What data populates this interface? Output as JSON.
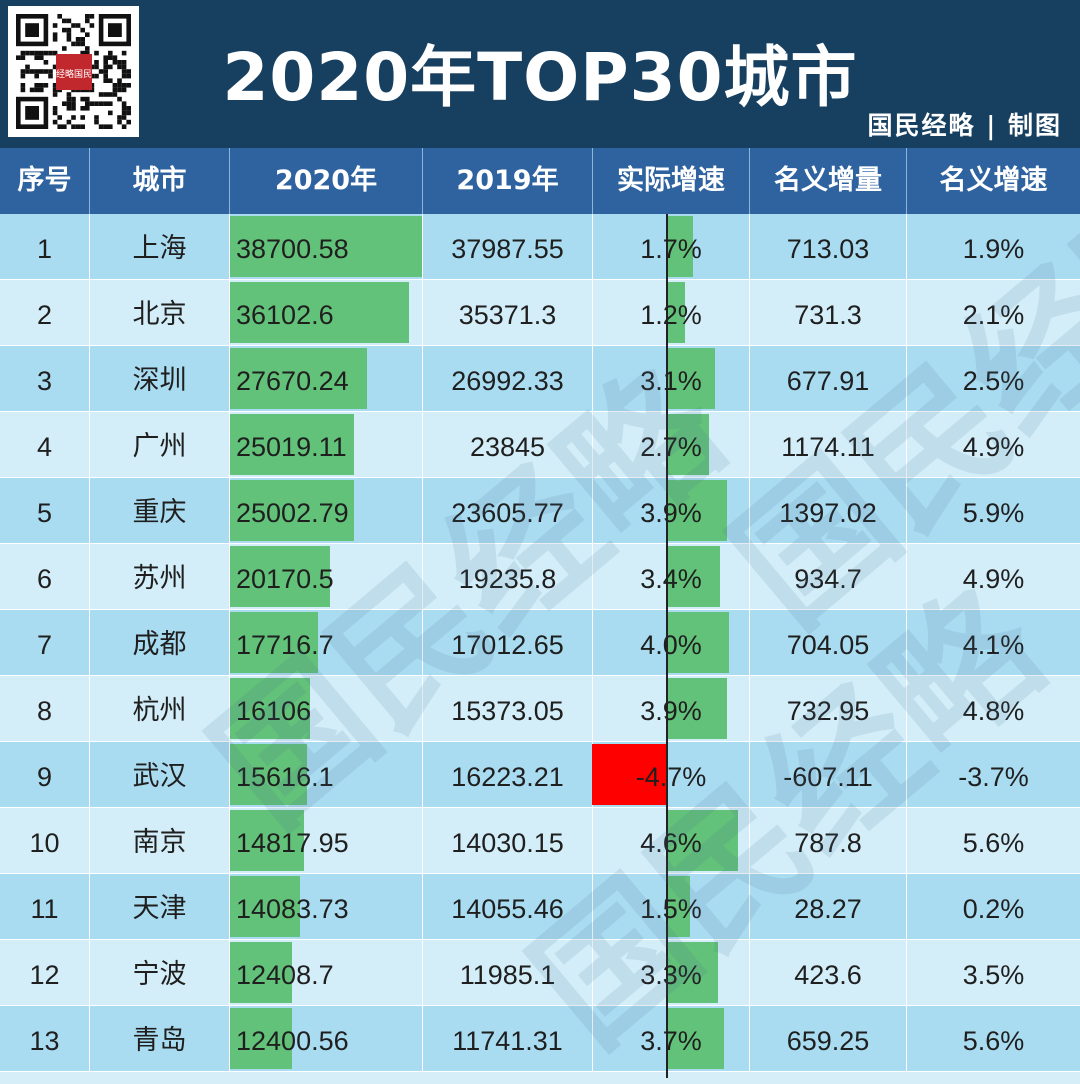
{
  "header": {
    "title": "2020年TOP30城市",
    "credit": "国民经略 | 制图",
    "qr_badge": "经略国民"
  },
  "columns": [
    "序号",
    "城市",
    "2020年",
    "2019年",
    "实际增速",
    "名义增量",
    "名义增速"
  ],
  "watermark": "国民经略",
  "colors": {
    "header_bg": "#173f5f",
    "column_header_bg": "#2f63a0",
    "row_odd": "#a9dcf1",
    "row_even": "#d3eef9",
    "bar_positive": "#63c27a",
    "bar_negative": "#ff0000"
  },
  "chart_data": {
    "type": "table",
    "title": "2020年TOP30城市",
    "gdp_bar_max": 38700.58,
    "growth_bar_max": 4.7,
    "rows": [
      {
        "rank": "1",
        "city": "上海",
        "gdp2020": "38700.58",
        "gdp2019": "37987.55",
        "real_growth": "1.7%",
        "nominal_increase": "713.03",
        "nominal_growth": "1.9%",
        "gdp_value": 38700.58,
        "growth_value": 1.7
      },
      {
        "rank": "2",
        "city": "北京",
        "gdp2020": "36102.6",
        "gdp2019": "35371.3",
        "real_growth": "1.2%",
        "nominal_increase": "731.3",
        "nominal_growth": "2.1%",
        "gdp_value": 36102.6,
        "growth_value": 1.2
      },
      {
        "rank": "3",
        "city": "深圳",
        "gdp2020": "27670.24",
        "gdp2019": "26992.33",
        "real_growth": "3.1%",
        "nominal_increase": "677.91",
        "nominal_growth": "2.5%",
        "gdp_value": 27670.24,
        "growth_value": 3.1
      },
      {
        "rank": "4",
        "city": "广州",
        "gdp2020": "25019.11",
        "gdp2019": "23845",
        "real_growth": "2.7%",
        "nominal_increase": "1174.11",
        "nominal_growth": "4.9%",
        "gdp_value": 25019.11,
        "growth_value": 2.7
      },
      {
        "rank": "5",
        "city": "重庆",
        "gdp2020": "25002.79",
        "gdp2019": "23605.77",
        "real_growth": "3.9%",
        "nominal_increase": "1397.02",
        "nominal_growth": "5.9%",
        "gdp_value": 25002.79,
        "growth_value": 3.9
      },
      {
        "rank": "6",
        "city": "苏州",
        "gdp2020": "20170.5",
        "gdp2019": "19235.8",
        "real_growth": "3.4%",
        "nominal_increase": "934.7",
        "nominal_growth": "4.9%",
        "gdp_value": 20170.5,
        "growth_value": 3.4
      },
      {
        "rank": "7",
        "city": "成都",
        "gdp2020": "17716.7",
        "gdp2019": "17012.65",
        "real_growth": "4.0%",
        "nominal_increase": "704.05",
        "nominal_growth": "4.1%",
        "gdp_value": 17716.7,
        "growth_value": 4.0
      },
      {
        "rank": "8",
        "city": "杭州",
        "gdp2020": "16106",
        "gdp2019": "15373.05",
        "real_growth": "3.9%",
        "nominal_increase": "732.95",
        "nominal_growth": "4.8%",
        "gdp_value": 16106,
        "growth_value": 3.9
      },
      {
        "rank": "9",
        "city": "武汉",
        "gdp2020": "15616.1",
        "gdp2019": "16223.21",
        "real_growth": "-4.7%",
        "nominal_increase": "-607.11",
        "nominal_growth": "-3.7%",
        "gdp_value": 15616.1,
        "growth_value": -4.7
      },
      {
        "rank": "10",
        "city": "南京",
        "gdp2020": "14817.95",
        "gdp2019": "14030.15",
        "real_growth": "4.6%",
        "nominal_increase": "787.8",
        "nominal_growth": "5.6%",
        "gdp_value": 14817.95,
        "growth_value": 4.6
      },
      {
        "rank": "11",
        "city": "天津",
        "gdp2020": "14083.73",
        "gdp2019": "14055.46",
        "real_growth": "1.5%",
        "nominal_increase": "28.27",
        "nominal_growth": "0.2%",
        "gdp_value": 14083.73,
        "growth_value": 1.5
      },
      {
        "rank": "12",
        "city": "宁波",
        "gdp2020": "12408.7",
        "gdp2019": "11985.1",
        "real_growth": "3.3%",
        "nominal_increase": "423.6",
        "nominal_growth": "3.5%",
        "gdp_value": 12408.7,
        "growth_value": 3.3
      },
      {
        "rank": "13",
        "city": "青岛",
        "gdp2020": "12400.56",
        "gdp2019": "11741.31",
        "real_growth": "3.7%",
        "nominal_increase": "659.25",
        "nominal_growth": "5.6%",
        "gdp_value": 12400.56,
        "growth_value": 3.7
      }
    ]
  }
}
